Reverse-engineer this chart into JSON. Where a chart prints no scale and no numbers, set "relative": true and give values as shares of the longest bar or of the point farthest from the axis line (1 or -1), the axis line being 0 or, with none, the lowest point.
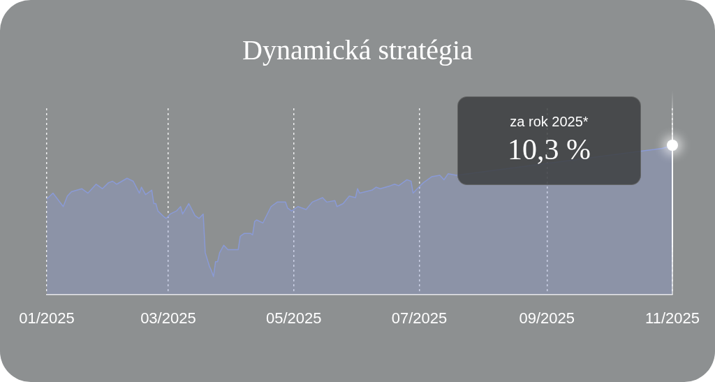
{
  "chart_data": {
    "type": "area",
    "title": "Dynamická stratégia",
    "relative": true,
    "x": [
      "2025-01-01",
      "2025-01-04",
      "2025-01-09",
      "2025-01-11",
      "2025-01-13",
      "2025-01-18",
      "2025-01-21",
      "2025-01-25",
      "2025-01-28",
      "2025-01-31",
      "2025-02-02",
      "2025-02-04",
      "2025-02-09",
      "2025-02-12",
      "2025-02-15",
      "2025-02-16",
      "2025-02-18",
      "2025-02-21",
      "2025-02-22",
      "2025-02-23",
      "2025-02-24",
      "2025-02-27",
      "2025-02-28",
      "2025-03-02",
      "2025-03-05",
      "2025-03-07",
      "2025-03-08",
      "2025-03-11",
      "2025-03-14",
      "2025-03-16",
      "2025-03-18",
      "2025-03-19",
      "2025-03-21",
      "2025-03-22",
      "2025-03-23",
      "2025-03-24",
      "2025-03-25",
      "2025-03-26",
      "2025-03-28",
      "2025-03-30",
      "2025-04-04",
      "2025-04-05",
      "2025-04-07",
      "2025-04-10",
      "2025-04-11",
      "2025-04-12",
      "2025-04-13",
      "2025-04-16",
      "2025-04-20",
      "2025-04-23",
      "2025-04-27",
      "2025-04-28",
      "2025-04-30",
      "2025-05-03",
      "2025-05-07",
      "2025-05-10",
      "2025-05-15",
      "2025-05-17",
      "2025-05-21",
      "2025-05-22",
      "2025-05-25",
      "2025-05-28",
      "2025-05-31",
      "2025-06-01",
      "2025-06-02",
      "2025-06-08",
      "2025-06-10",
      "2025-06-12",
      "2025-06-17",
      "2025-06-19",
      "2025-06-21",
      "2025-06-25",
      "2025-06-27",
      "2025-06-28",
      "2025-06-30",
      "2025-07-03",
      "2025-07-07",
      "2025-07-11",
      "2025-07-13",
      "2025-07-15",
      "2025-07-19",
      "2025-09-01",
      "2025-10-27",
      "2025-11-01"
    ],
    "series": [
      {
        "color": "#8a9ad6",
        "values": [
          0.64,
          0.68,
          0.59,
          0.66,
          0.69,
          0.71,
          0.68,
          0.74,
          0.71,
          0.75,
          0.76,
          0.74,
          0.78,
          0.76,
          0.68,
          0.72,
          0.67,
          0.7,
          0.61,
          0.61,
          0.56,
          0.52,
          0.51,
          0.54,
          0.56,
          0.59,
          0.54,
          0.61,
          0.53,
          0.51,
          0.54,
          0.28,
          0.19,
          0.16,
          0.12,
          0.22,
          0.22,
          0.28,
          0.33,
          0.3,
          0.3,
          0.39,
          0.41,
          0.41,
          0.4,
          0.49,
          0.5,
          0.48,
          0.59,
          0.62,
          0.62,
          0.58,
          0.56,
          0.59,
          0.57,
          0.62,
          0.65,
          0.62,
          0.63,
          0.59,
          0.61,
          0.66,
          0.65,
          0.71,
          0.68,
          0.7,
          0.72,
          0.71,
          0.73,
          0.74,
          0.73,
          0.77,
          0.76,
          0.68,
          0.71,
          0.75,
          0.79,
          0.8,
          0.77,
          0.81,
          0.8,
          null,
          0.98,
          1
        ]
      }
    ],
    "xlim": [
      "2025-01-01",
      "2025-11-01"
    ],
    "xticks": [
      {
        "value": "2025-01-01",
        "label": "01/2025"
      },
      {
        "value": "2025-03-01",
        "label": "03/2025"
      },
      {
        "value": "2025-05-01",
        "label": "05/2025"
      },
      {
        "value": "2025-07-01",
        "label": "07/2025"
      },
      {
        "value": "2025-09-01",
        "label": "09/2025"
      },
      {
        "value": "2025-11-01",
        "label": "11/2025"
      }
    ],
    "grid": "x",
    "line_style": "solid",
    "annotations": [
      "za rok 2025*",
      "10,3 %"
    ]
  }
}
